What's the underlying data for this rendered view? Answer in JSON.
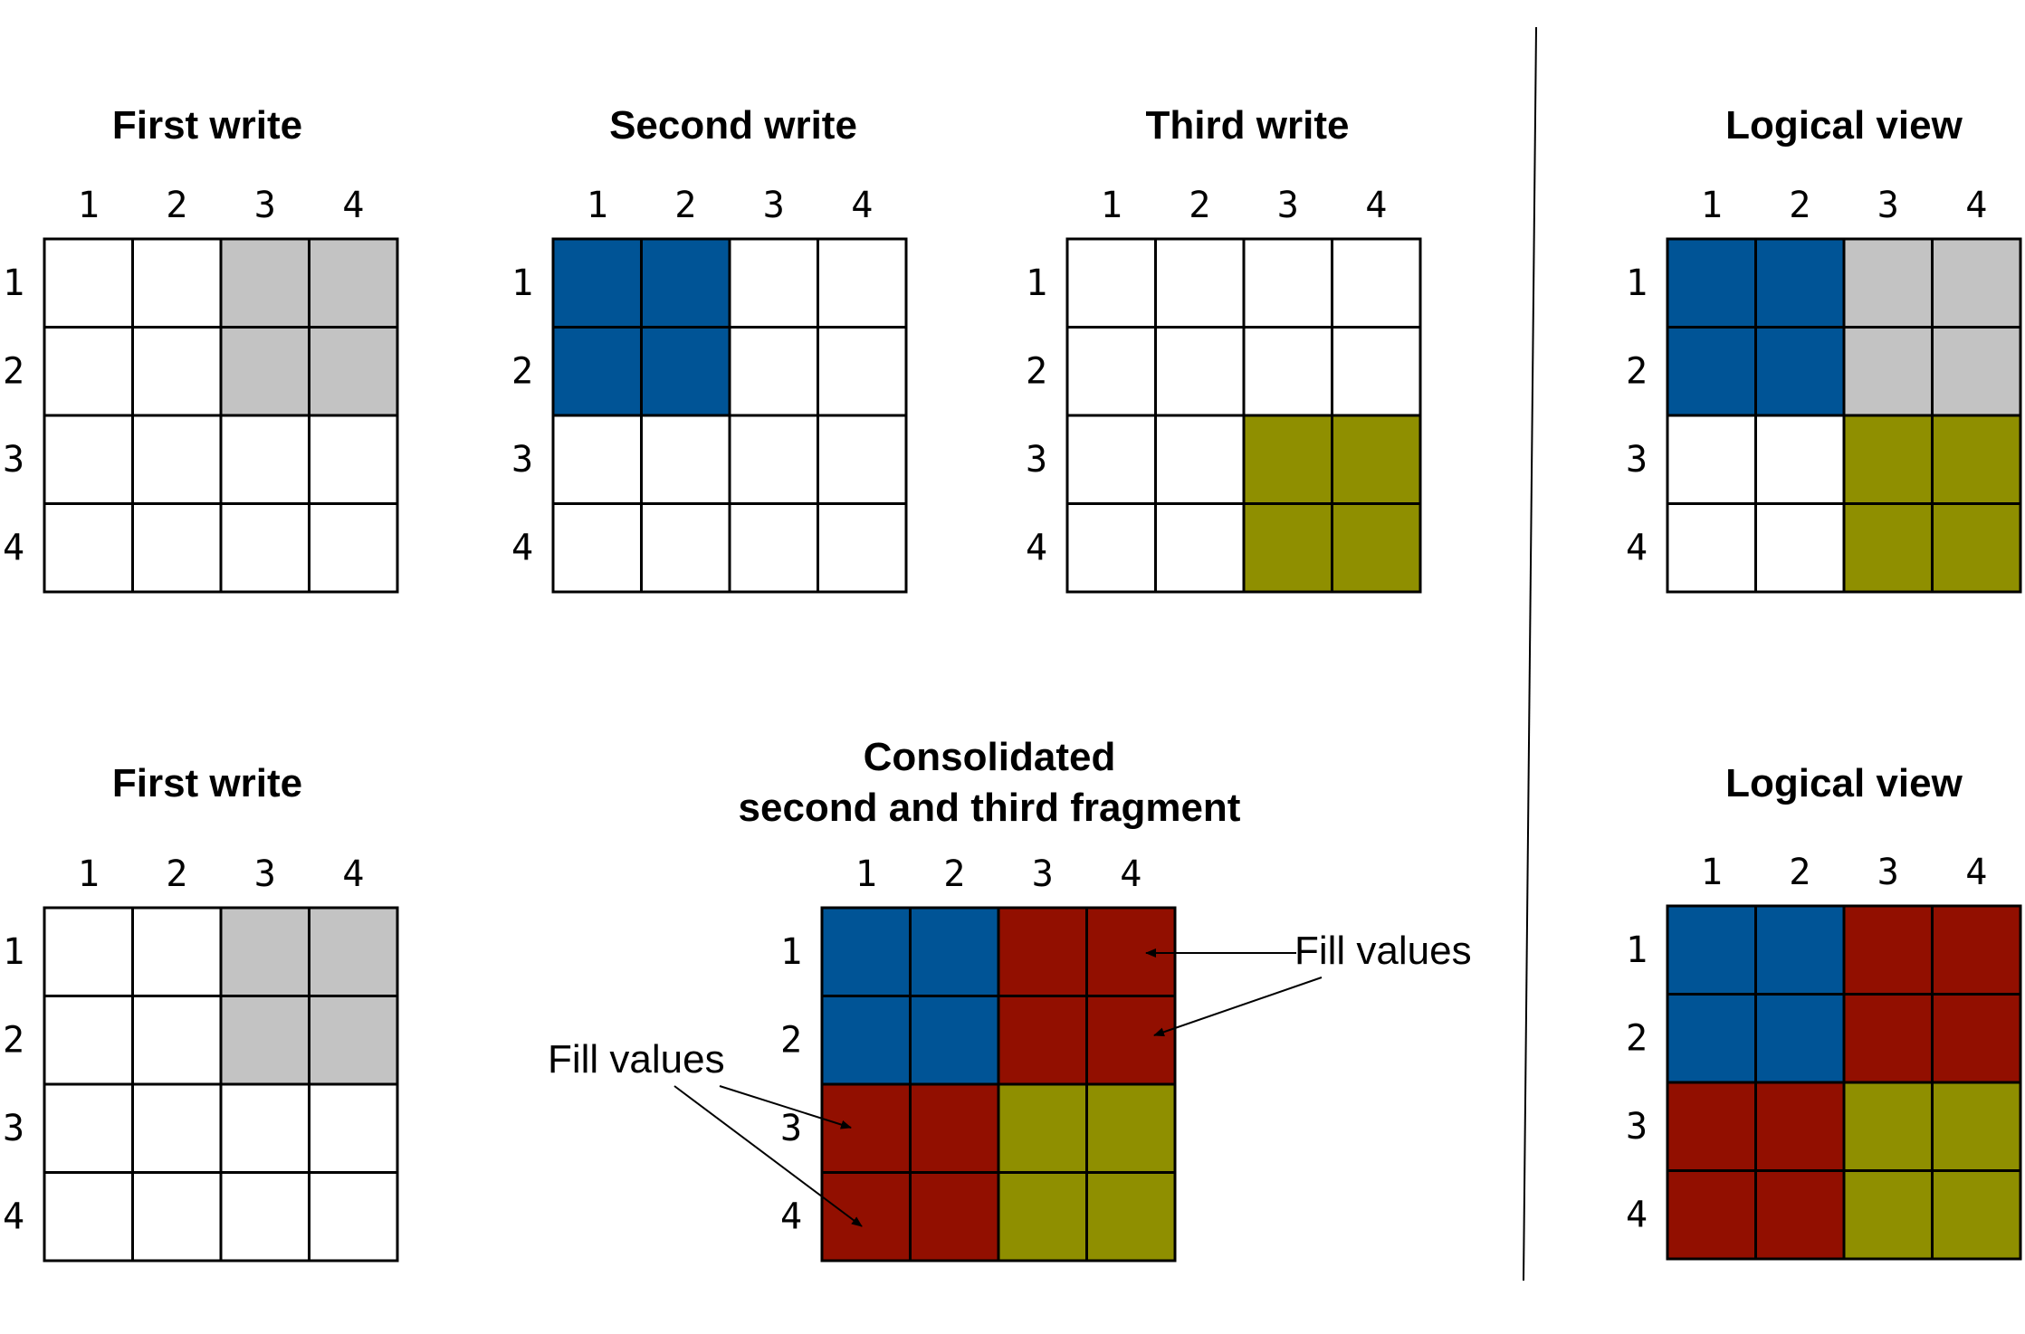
{
  "colors": {
    "empty": "#ffffff",
    "gray": "#c3c3c3",
    "blue": "#005496",
    "olive": "#8f8f00",
    "red": "#920f00",
    "grid_line": "#000000"
  },
  "panels": [
    {
      "id": "first-write-top",
      "title": [
        "First write"
      ],
      "col_labels": [
        "1",
        "2",
        "3",
        "4"
      ],
      "row_labels": [
        "1",
        "2",
        "3",
        "4"
      ],
      "cells": [
        [
          "empty",
          "empty",
          "gray",
          "gray"
        ],
        [
          "empty",
          "empty",
          "gray",
          "gray"
        ],
        [
          "empty",
          "empty",
          "empty",
          "empty"
        ],
        [
          "empty",
          "empty",
          "empty",
          "empty"
        ]
      ]
    },
    {
      "id": "second-write",
      "title": [
        "Second write"
      ],
      "col_labels": [
        "1",
        "2",
        "3",
        "4"
      ],
      "row_labels": [
        "1",
        "2",
        "3",
        "4"
      ],
      "cells": [
        [
          "blue",
          "blue",
          "empty",
          "empty"
        ],
        [
          "blue",
          "blue",
          "empty",
          "empty"
        ],
        [
          "empty",
          "empty",
          "empty",
          "empty"
        ],
        [
          "empty",
          "empty",
          "empty",
          "empty"
        ]
      ]
    },
    {
      "id": "third-write",
      "title": [
        "Third write"
      ],
      "col_labels": [
        "1",
        "2",
        "3",
        "4"
      ],
      "row_labels": [
        "1",
        "2",
        "3",
        "4"
      ],
      "cells": [
        [
          "empty",
          "empty",
          "empty",
          "empty"
        ],
        [
          "empty",
          "empty",
          "empty",
          "empty"
        ],
        [
          "empty",
          "empty",
          "olive",
          "olive"
        ],
        [
          "empty",
          "empty",
          "olive",
          "olive"
        ]
      ]
    },
    {
      "id": "logical-view-top",
      "title": [
        "Logical view"
      ],
      "col_labels": [
        "1",
        "2",
        "3",
        "4"
      ],
      "row_labels": [
        "1",
        "2",
        "3",
        "4"
      ],
      "cells": [
        [
          "blue",
          "blue",
          "gray",
          "gray"
        ],
        [
          "blue",
          "blue",
          "gray",
          "gray"
        ],
        [
          "empty",
          "empty",
          "olive",
          "olive"
        ],
        [
          "empty",
          "empty",
          "olive",
          "olive"
        ]
      ]
    },
    {
      "id": "first-write-bottom",
      "title": [
        "First write"
      ],
      "col_labels": [
        "1",
        "2",
        "3",
        "4"
      ],
      "row_labels": [
        "1",
        "2",
        "3",
        "4"
      ],
      "cells": [
        [
          "empty",
          "empty",
          "gray",
          "gray"
        ],
        [
          "empty",
          "empty",
          "gray",
          "gray"
        ],
        [
          "empty",
          "empty",
          "empty",
          "empty"
        ],
        [
          "empty",
          "empty",
          "empty",
          "empty"
        ]
      ]
    },
    {
      "id": "consolidated",
      "title": [
        "Consolidated",
        "second and third fragment"
      ],
      "col_labels": [
        "1",
        "2",
        "3",
        "4"
      ],
      "row_labels": [
        "1",
        "2",
        "3",
        "4"
      ],
      "cells": [
        [
          "blue",
          "blue",
          "red",
          "red"
        ],
        [
          "blue",
          "blue",
          "red",
          "red"
        ],
        [
          "red",
          "red",
          "olive",
          "olive"
        ],
        [
          "red",
          "red",
          "olive",
          "olive"
        ]
      ]
    },
    {
      "id": "logical-view-bottom",
      "title": [
        "Logical view"
      ],
      "col_labels": [
        "1",
        "2",
        "3",
        "4"
      ],
      "row_labels": [
        "1",
        "2",
        "3",
        "4"
      ],
      "cells": [
        [
          "blue",
          "blue",
          "red",
          "red"
        ],
        [
          "blue",
          "blue",
          "red",
          "red"
        ],
        [
          "red",
          "red",
          "olive",
          "olive"
        ],
        [
          "red",
          "red",
          "olive",
          "olive"
        ]
      ]
    }
  ],
  "annotations": {
    "right": "Fill values",
    "left": "Fill values"
  }
}
